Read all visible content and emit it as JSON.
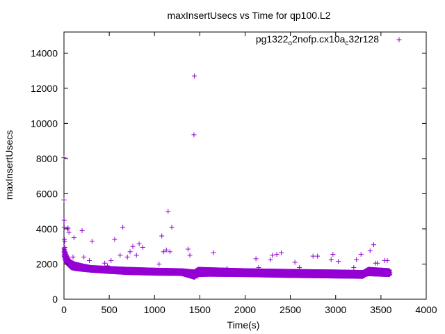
{
  "chart_data": {
    "type": "scatter",
    "title": "maxInsertUsecs vs Time for qp100.L2",
    "xlabel": "Time(s)",
    "ylabel": "maxInsertUsecs",
    "xlim": [
      0,
      4000
    ],
    "ylim": [
      0,
      15200
    ],
    "x_ticks": [
      "0",
      "500",
      "1000",
      "1500",
      "2000",
      "2500",
      "3000",
      "3500",
      "4000"
    ],
    "y_ticks": [
      "0",
      "2000",
      "4000",
      "6000",
      "8000",
      "10000",
      "12000",
      "14000"
    ],
    "grid": false,
    "legend_position": "top-right",
    "legend": {
      "parts": [
        {
          "text": "pg1322",
          "sub": false
        },
        {
          "text": "o",
          "sub": true
        },
        {
          "text": "2nofp.cx10a",
          "sub": false
        },
        {
          "text": "c",
          "sub": true
        },
        {
          "text": "32r128",
          "sub": false
        }
      ]
    },
    "marker": "+",
    "color": "#9400d3",
    "series": [
      {
        "points": [
          [
            0,
            8050
          ],
          [
            0,
            5650
          ],
          [
            2,
            4500
          ],
          [
            3,
            4100
          ],
          [
            5,
            3400
          ],
          [
            8,
            3300
          ],
          [
            10,
            2950
          ],
          [
            12,
            2700
          ],
          [
            15,
            2600
          ],
          [
            20,
            2400
          ],
          [
            25,
            2300
          ],
          [
            30,
            2200
          ],
          [
            35,
            2150
          ],
          [
            40,
            4000
          ],
          [
            45,
            4050
          ],
          [
            50,
            2100
          ],
          [
            55,
            3800
          ],
          [
            60,
            2000
          ],
          [
            70,
            1950
          ],
          [
            80,
            1900
          ],
          [
            90,
            1900
          ],
          [
            100,
            2400
          ],
          [
            110,
            3500
          ],
          [
            120,
            1850
          ],
          [
            130,
            1850
          ],
          [
            150,
            1800
          ],
          [
            170,
            1800
          ],
          [
            190,
            1780
          ],
          [
            200,
            3900
          ],
          [
            220,
            2400
          ],
          [
            250,
            1750
          ],
          [
            280,
            2200
          ],
          [
            300,
            1750
          ],
          [
            310,
            3300
          ],
          [
            350,
            1720
          ],
          [
            400,
            1700
          ],
          [
            450,
            2050
          ],
          [
            480,
            1900
          ],
          [
            500,
            1680
          ],
          [
            520,
            2200
          ],
          [
            550,
            1660
          ],
          [
            560,
            3400
          ],
          [
            600,
            1650
          ],
          [
            620,
            2500
          ],
          [
            650,
            4100
          ],
          [
            680,
            1640
          ],
          [
            700,
            2400
          ],
          [
            730,
            2700
          ],
          [
            760,
            3000
          ],
          [
            780,
            1620
          ],
          [
            800,
            2500
          ],
          [
            830,
            3150
          ],
          [
            870,
            2950
          ],
          [
            900,
            1600
          ],
          [
            950,
            1600
          ],
          [
            1000,
            1580
          ],
          [
            1050,
            2000
          ],
          [
            1080,
            3600
          ],
          [
            1100,
            2700
          ],
          [
            1130,
            2800
          ],
          [
            1150,
            5000
          ],
          [
            1170,
            2700
          ],
          [
            1190,
            4100
          ],
          [
            1200,
            1550
          ],
          [
            1250,
            1540
          ],
          [
            1300,
            1530
          ],
          [
            1350,
            1520
          ],
          [
            1370,
            2850
          ],
          [
            1390,
            2500
          ],
          [
            1400,
            1500
          ],
          [
            1435,
            9350
          ],
          [
            1440,
            12700
          ],
          [
            1450,
            1400
          ],
          [
            1480,
            1300
          ],
          [
            1500,
            1500
          ],
          [
            1550,
            1550
          ],
          [
            1600,
            1540
          ],
          [
            1650,
            2650
          ],
          [
            1700,
            1530
          ],
          [
            1750,
            1520
          ],
          [
            1800,
            1750
          ],
          [
            1850,
            1510
          ],
          [
            1900,
            1500
          ],
          [
            1950,
            1500
          ],
          [
            2000,
            1490
          ],
          [
            2050,
            1480
          ],
          [
            2100,
            1470
          ],
          [
            2120,
            2300
          ],
          [
            2150,
            1800
          ],
          [
            2200,
            1460
          ],
          [
            2250,
            1450
          ],
          [
            2280,
            2250
          ],
          [
            2300,
            2500
          ],
          [
            2350,
            2550
          ],
          [
            2400,
            2650
          ],
          [
            2450,
            1450
          ],
          [
            2500,
            1440
          ],
          [
            2550,
            2100
          ],
          [
            2600,
            1800
          ],
          [
            2650,
            1430
          ],
          [
            2700,
            1420
          ],
          [
            2750,
            2450
          ],
          [
            2800,
            2450
          ],
          [
            2850,
            1420
          ],
          [
            2900,
            1410
          ],
          [
            2950,
            2250
          ],
          [
            2970,
            2550
          ],
          [
            3000,
            1400
          ],
          [
            3030,
            2150
          ],
          [
            3100,
            1400
          ],
          [
            3150,
            1400
          ],
          [
            3200,
            1800
          ],
          [
            3230,
            2250
          ],
          [
            3280,
            2550
          ],
          [
            3300,
            1500
          ],
          [
            3350,
            1600
          ],
          [
            3380,
            2750
          ],
          [
            3420,
            3100
          ],
          [
            3440,
            2050
          ],
          [
            3460,
            2050
          ],
          [
            3500,
            1550
          ],
          [
            3540,
            2200
          ],
          [
            3570,
            2200
          ],
          [
            3600,
            1500
          ]
        ]
      }
    ],
    "band": [
      [
        0,
        2900,
        2500
      ],
      [
        10,
        2700,
        2300
      ],
      [
        25,
        2500,
        2100
      ],
      [
        50,
        2250,
        1950
      ],
      [
        80,
        2100,
        1800
      ],
      [
        120,
        2000,
        1750
      ],
      [
        200,
        1900,
        1700
      ],
      [
        300,
        1800,
        1650
      ],
      [
        500,
        1750,
        1580
      ],
      [
        700,
        1700,
        1520
      ],
      [
        1000,
        1650,
        1480
      ],
      [
        1300,
        1620,
        1460
      ],
      [
        1440,
        1550,
        1250
      ],
      [
        1480,
        1700,
        1400
      ],
      [
        1600,
        1680,
        1420
      ],
      [
        2000,
        1620,
        1400
      ],
      [
        2500,
        1580,
        1350
      ],
      [
        3000,
        1550,
        1320
      ],
      [
        3300,
        1520,
        1300
      ],
      [
        3330,
        1600,
        1400
      ],
      [
        3360,
        1700,
        1450
      ],
      [
        3600,
        1620,
        1400
      ]
    ]
  }
}
